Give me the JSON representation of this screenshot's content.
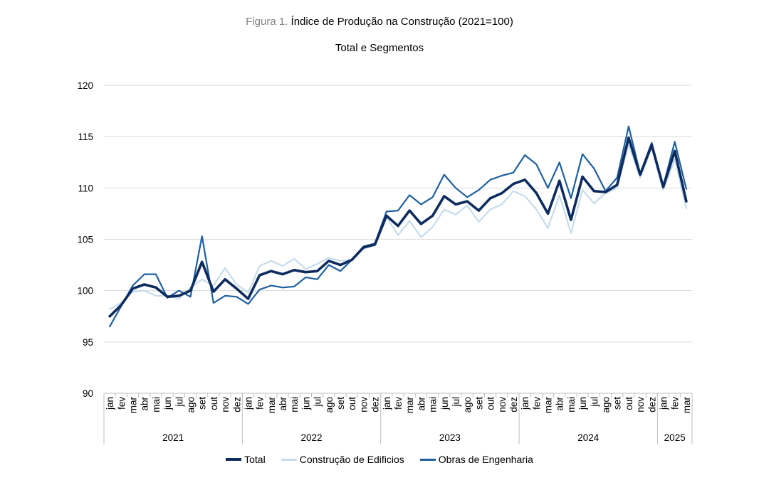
{
  "header": {
    "figure_prefix": "Figura 1.",
    "title": "Índice de Produção na Construção (2021=100)",
    "subtitle": "Total e Segmentos"
  },
  "colors": {
    "Total": "#0d2b5e",
    "Construção de Edificios": "#c6dcec",
    "Obras de Engenharia": "#1f5fa0",
    "grid": "#d9d9d9",
    "axis": "#bfbfbf"
  },
  "chart_data": {
    "type": "line",
    "title": "Índice de Produção na Construção (2021=100)",
    "subtitle": "Total e Segmentos",
    "ylim": [
      90,
      120
    ],
    "yticks": [
      90,
      95,
      100,
      105,
      110,
      115,
      120
    ],
    "grid": true,
    "legend_position": "bottom",
    "years": [
      {
        "label": "2021",
        "months": 12
      },
      {
        "label": "2022",
        "months": 12
      },
      {
        "label": "2023",
        "months": 12
      },
      {
        "label": "2024",
        "months": 12
      },
      {
        "label": "2025",
        "months": 3
      }
    ],
    "categories": [
      "jan",
      "fev",
      "mar",
      "abr",
      "mai",
      "jun",
      "jul",
      "ago",
      "set",
      "out",
      "nov",
      "dez",
      "jan",
      "fev",
      "mar",
      "abr",
      "mai",
      "jun",
      "jul",
      "ago",
      "set",
      "out",
      "nov",
      "dez",
      "jan",
      "fev",
      "mar",
      "abr",
      "mai",
      "jun",
      "jul",
      "ago",
      "set",
      "out",
      "nov",
      "dez",
      "jan",
      "fev",
      "mar",
      "abr",
      "mai",
      "jun",
      "jul",
      "ago",
      "set",
      "out",
      "nov",
      "dez",
      "jan",
      "fev",
      "mar"
    ],
    "series": [
      {
        "name": "Total",
        "values": [
          97.5,
          98.6,
          100.2,
          100.6,
          100.3,
          99.4,
          99.5,
          100.0,
          102.8,
          99.9,
          101.1,
          100.2,
          99.2,
          101.5,
          101.9,
          101.6,
          102.0,
          101.8,
          101.9,
          102.9,
          102.5,
          103.0,
          104.2,
          104.5,
          107.3,
          106.3,
          107.8,
          106.5,
          107.3,
          109.2,
          108.4,
          108.7,
          107.8,
          109.0,
          109.5,
          110.4,
          110.8,
          109.5,
          107.5,
          110.7,
          106.9,
          111.1,
          109.7,
          109.6,
          110.3,
          114.9,
          111.3,
          114.2,
          110.1,
          113.6,
          108.7
        ]
      },
      {
        "name": "Construção de Edificios",
        "values": [
          98.2,
          98.8,
          99.9,
          100.0,
          99.5,
          99.5,
          99.2,
          100.3,
          101.1,
          100.5,
          102.2,
          100.6,
          99.8,
          102.4,
          102.9,
          102.4,
          103.1,
          102.1,
          102.6,
          103.2,
          102.9,
          103.0,
          104.1,
          104.4,
          107.2,
          105.4,
          106.8,
          105.2,
          106.2,
          107.9,
          107.4,
          108.3,
          106.7,
          107.9,
          108.4,
          109.7,
          109.2,
          107.9,
          106.1,
          109.3,
          105.6,
          109.8,
          108.5,
          109.5,
          110.0,
          114.2,
          111.0,
          113.9,
          109.8,
          112.8,
          108.0
        ]
      },
      {
        "name": "Obras de Engenharia",
        "values": [
          96.5,
          98.5,
          100.5,
          101.6,
          101.6,
          99.3,
          100.0,
          99.4,
          105.3,
          98.8,
          99.5,
          99.4,
          98.7,
          100.1,
          100.5,
          100.3,
          100.4,
          101.3,
          101.1,
          102.5,
          101.9,
          103.0,
          104.3,
          104.6,
          107.7,
          107.8,
          109.3,
          108.4,
          109.1,
          111.3,
          110.0,
          109.1,
          109.8,
          110.8,
          111.2,
          111.5,
          113.2,
          112.3,
          110.0,
          112.5,
          109.0,
          113.3,
          111.9,
          109.7,
          111.0,
          116.0,
          111.4,
          114.4,
          110.2,
          114.5,
          109.9
        ]
      }
    ]
  }
}
